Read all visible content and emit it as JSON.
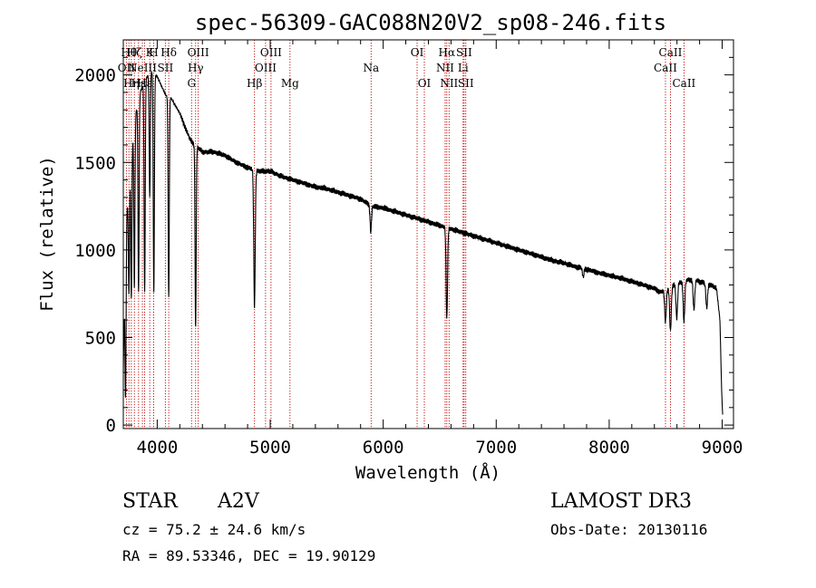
{
  "chart_data": {
    "type": "line",
    "title": "spec-56309-GAC088N20V2_sp08-246.fits",
    "xlabel": "Wavelength (Å)",
    "ylabel": "Flux (relative)",
    "xlim": [
      3700,
      9100
    ],
    "ylim": [
      -20,
      2200
    ],
    "xticks": [
      4000,
      5000,
      6000,
      7000,
      8000,
      9000
    ],
    "yticks": [
      0,
      500,
      1000,
      1500,
      2000
    ],
    "grid": false,
    "continuum": {
      "x": [
        3700,
        3712,
        3725,
        3760,
        3800,
        3850,
        3900,
        3950,
        4000,
        4050,
        4080,
        4120,
        4200,
        4260,
        4300,
        4400,
        4500,
        4600,
        4700,
        4800,
        4900,
        5000,
        5100,
        5200,
        5300,
        5400,
        5500,
        5600,
        5700,
        5800,
        5900,
        6000,
        6100,
        6200,
        6300,
        6400,
        6500,
        6600,
        6700,
        6800,
        6900,
        7000,
        7100,
        7200,
        7300,
        7400,
        7500,
        7600,
        7700,
        7800,
        7900,
        8000,
        8100,
        8200,
        8300,
        8400,
        8450,
        8500,
        8550,
        8600,
        8650,
        8700,
        8750,
        8800,
        8850,
        8900,
        8950,
        8980,
        8995,
        9005
      ],
      "y": [
        300,
        800,
        1150,
        1500,
        1750,
        1900,
        1980,
        2020,
        1990,
        1920,
        1880,
        1870,
        1780,
        1680,
        1620,
        1560,
        1560,
        1540,
        1500,
        1470,
        1450,
        1450,
        1420,
        1400,
        1380,
        1360,
        1350,
        1330,
        1310,
        1290,
        1250,
        1240,
        1220,
        1200,
        1180,
        1160,
        1140,
        1120,
        1100,
        1080,
        1060,
        1040,
        1020,
        1000,
        980,
        960,
        940,
        925,
        905,
        890,
        870,
        855,
        840,
        820,
        800,
        780,
        760,
        770,
        790,
        810,
        820,
        830,
        830,
        820,
        810,
        800,
        780,
        600,
        200,
        40
      ]
    },
    "absorption_features": [
      {
        "x": 3720,
        "depth": 850
      },
      {
        "x": 3750,
        "depth": 650
      },
      {
        "x": 3771,
        "depth": 850
      },
      {
        "x": 3798,
        "depth": 950
      },
      {
        "x": 3835,
        "depth": 1100
      },
      {
        "x": 3889,
        "depth": 1200
      },
      {
        "x": 3934,
        "depth": 700
      },
      {
        "x": 3970,
        "depth": 1250
      },
      {
        "x": 4102,
        "depth": 1150
      },
      {
        "x": 4340,
        "depth": 1050
      },
      {
        "x": 4861,
        "depth": 780
      },
      {
        "x": 5890,
        "depth": 150
      },
      {
        "x": 6563,
        "depth": 520
      },
      {
        "x": 7770,
        "depth": 50
      },
      {
        "x": 8498,
        "depth": 180
      },
      {
        "x": 8542,
        "depth": 250
      },
      {
        "x": 8598,
        "depth": 200
      },
      {
        "x": 8662,
        "depth": 230
      },
      {
        "x": 8750,
        "depth": 170
      },
      {
        "x": 8863,
        "depth": 140
      }
    ],
    "lines": [
      {
        "x": 3727,
        "label": "OII",
        "row": 1
      },
      {
        "x": 3750,
        "label": "Hθ",
        "row": 0
      },
      {
        "x": 3771,
        "label": "Hη",
        "row": 2
      },
      {
        "x": 3798,
        "label": "Hζ",
        "row": 0
      },
      {
        "x": 3835,
        "label": "Hε",
        "row": 2
      },
      {
        "x": 3869,
        "label": "NeIII",
        "row": 1
      },
      {
        "x": 3889,
        "label": "Hε",
        "row": 2
      },
      {
        "x": 3934,
        "label": "K",
        "row": 0
      },
      {
        "x": 3969,
        "label": "H",
        "row": 0
      },
      {
        "x": 4072,
        "label": "SII",
        "row": 1
      },
      {
        "x": 4102,
        "label": "Hδ",
        "row": 0
      },
      {
        "x": 4304,
        "label": "G",
        "row": 2
      },
      {
        "x": 4340,
        "label": "Hγ",
        "row": 1
      },
      {
        "x": 4363,
        "label": "OIII",
        "row": 0
      },
      {
        "x": 4861,
        "label": "Hβ",
        "row": 2
      },
      {
        "x": 4959,
        "label": "OIII",
        "row": 1
      },
      {
        "x": 5007,
        "label": "OIII",
        "row": 0
      },
      {
        "x": 5175,
        "label": "Mg",
        "row": 2
      },
      {
        "x": 5893,
        "label": "Na",
        "row": 1
      },
      {
        "x": 6300,
        "label": "OI",
        "row": 0
      },
      {
        "x": 6364,
        "label": "OI",
        "row": 2
      },
      {
        "x": 6548,
        "label": "NII",
        "row": 1
      },
      {
        "x": 6563,
        "label": "Hα",
        "row": 0
      },
      {
        "x": 6583,
        "label": "NII",
        "row": 2
      },
      {
        "x": 6707,
        "label": "Li",
        "row": 1
      },
      {
        "x": 6716,
        "label": "SII",
        "row": 0
      },
      {
        "x": 6731,
        "label": "SII",
        "row": 2
      },
      {
        "x": 8498,
        "label": "CaII",
        "row": 1
      },
      {
        "x": 8542,
        "label": "CaII",
        "row": 0
      },
      {
        "x": 8662,
        "label": "CaII",
        "row": 2
      }
    ]
  },
  "info": {
    "object_class": "STAR",
    "subclass": "A2V",
    "survey": "LAMOST DR3",
    "cz": "cz = 75.2 ± 24.6 km/s",
    "obs_date": "Obs-Date: 20130116",
    "coords": "RA =  89.53346, DEC =  19.90129"
  },
  "colors": {
    "line_marker": "#c00000",
    "spectrum": "#000000",
    "axes": "#000000"
  }
}
